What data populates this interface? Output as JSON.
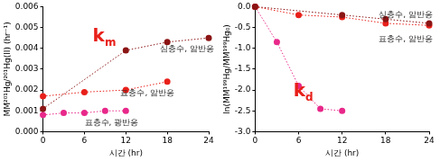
{
  "chart_data": [
    {
      "type": "scatter",
      "x_label": "시간 (hr)",
      "y_label": "MM²⁰¹Hg/²⁰¹Hg(II) (hr⁻¹)",
      "annotation": {
        "text": "k",
        "subscript": "m",
        "color": "#e8201a"
      },
      "xlim": [
        0,
        24
      ],
      "xticks": [
        0,
        6,
        12,
        18,
        24
      ],
      "ylim": [
        0,
        0.006
      ],
      "yticks": [
        {
          "value": 0,
          "label": "0.000"
        },
        {
          "value": 0.001,
          "label": "0.001"
        },
        {
          "value": 0.002,
          "label": "0.002"
        },
        {
          "value": 0.003,
          "label": "0.003"
        },
        {
          "value": 0.004,
          "label": "0.004"
        },
        {
          "value": 0.005,
          "label": "0.005"
        },
        {
          "value": 0.006,
          "label": "0.006"
        }
      ],
      "grid": false,
      "marker": "circle",
      "line_style": "dotted",
      "series": [
        {
          "name": "심층수, 암반응",
          "color": "#8b1414",
          "x": [
            0,
            12,
            18,
            24
          ],
          "values": [
            0.0011,
            0.0039,
            0.0043,
            0.0045
          ]
        },
        {
          "name": "표층수, 암반응",
          "color": "#e8201a",
          "x": [
            0,
            6,
            12,
            18
          ],
          "values": [
            0.0017,
            0.0019,
            0.002,
            0.0024
          ]
        },
        {
          "name": "표층수, 광반응",
          "color": "#e8288a",
          "x": [
            0,
            3,
            6,
            9,
            12
          ],
          "values": [
            0.0008,
            0.0009,
            0.0009,
            0.001,
            0.001
          ]
        }
      ]
    },
    {
      "type": "scatter",
      "x_label": "시간 (hr)",
      "y_label": "ln(MM¹⁹⁹Hg/MM¹⁹⁹Hg₀)",
      "annotation": {
        "text": "k",
        "subscript": "d",
        "color": "#e8201a"
      },
      "xlim": [
        0,
        24
      ],
      "xticks": [
        0,
        6,
        12,
        18,
        24
      ],
      "ylim": [
        -3,
        0
      ],
      "yticks": [
        {
          "value": -3,
          "label": "-3.0"
        },
        -2.5,
        {
          "value": -2,
          "label": "-2.0"
        },
        -1.5,
        {
          "value": -1,
          "label": "-1.0"
        },
        -0.5,
        {
          "value": 0,
          "label": "0.0"
        }
      ],
      "grid": false,
      "marker": "circle",
      "line_style": "dotted",
      "series": [
        {
          "name": "심층수, 암반응",
          "color": "#8b1414",
          "x": [
            0,
            12,
            18,
            24
          ],
          "values": [
            0,
            -0.2,
            -0.3,
            -0.4
          ]
        },
        {
          "name": "표층수, 암반응",
          "color": "#e8201a",
          "x": [
            0,
            6,
            12,
            18,
            24
          ],
          "values": [
            0,
            -0.2,
            -0.25,
            -0.4,
            -0.45
          ]
        },
        {
          "color": "#e8288a",
          "x": [
            0,
            3,
            6,
            9,
            12
          ],
          "values": [
            0,
            -0.85,
            -1.9,
            -2.45,
            -2.5
          ]
        }
      ]
    }
  ]
}
